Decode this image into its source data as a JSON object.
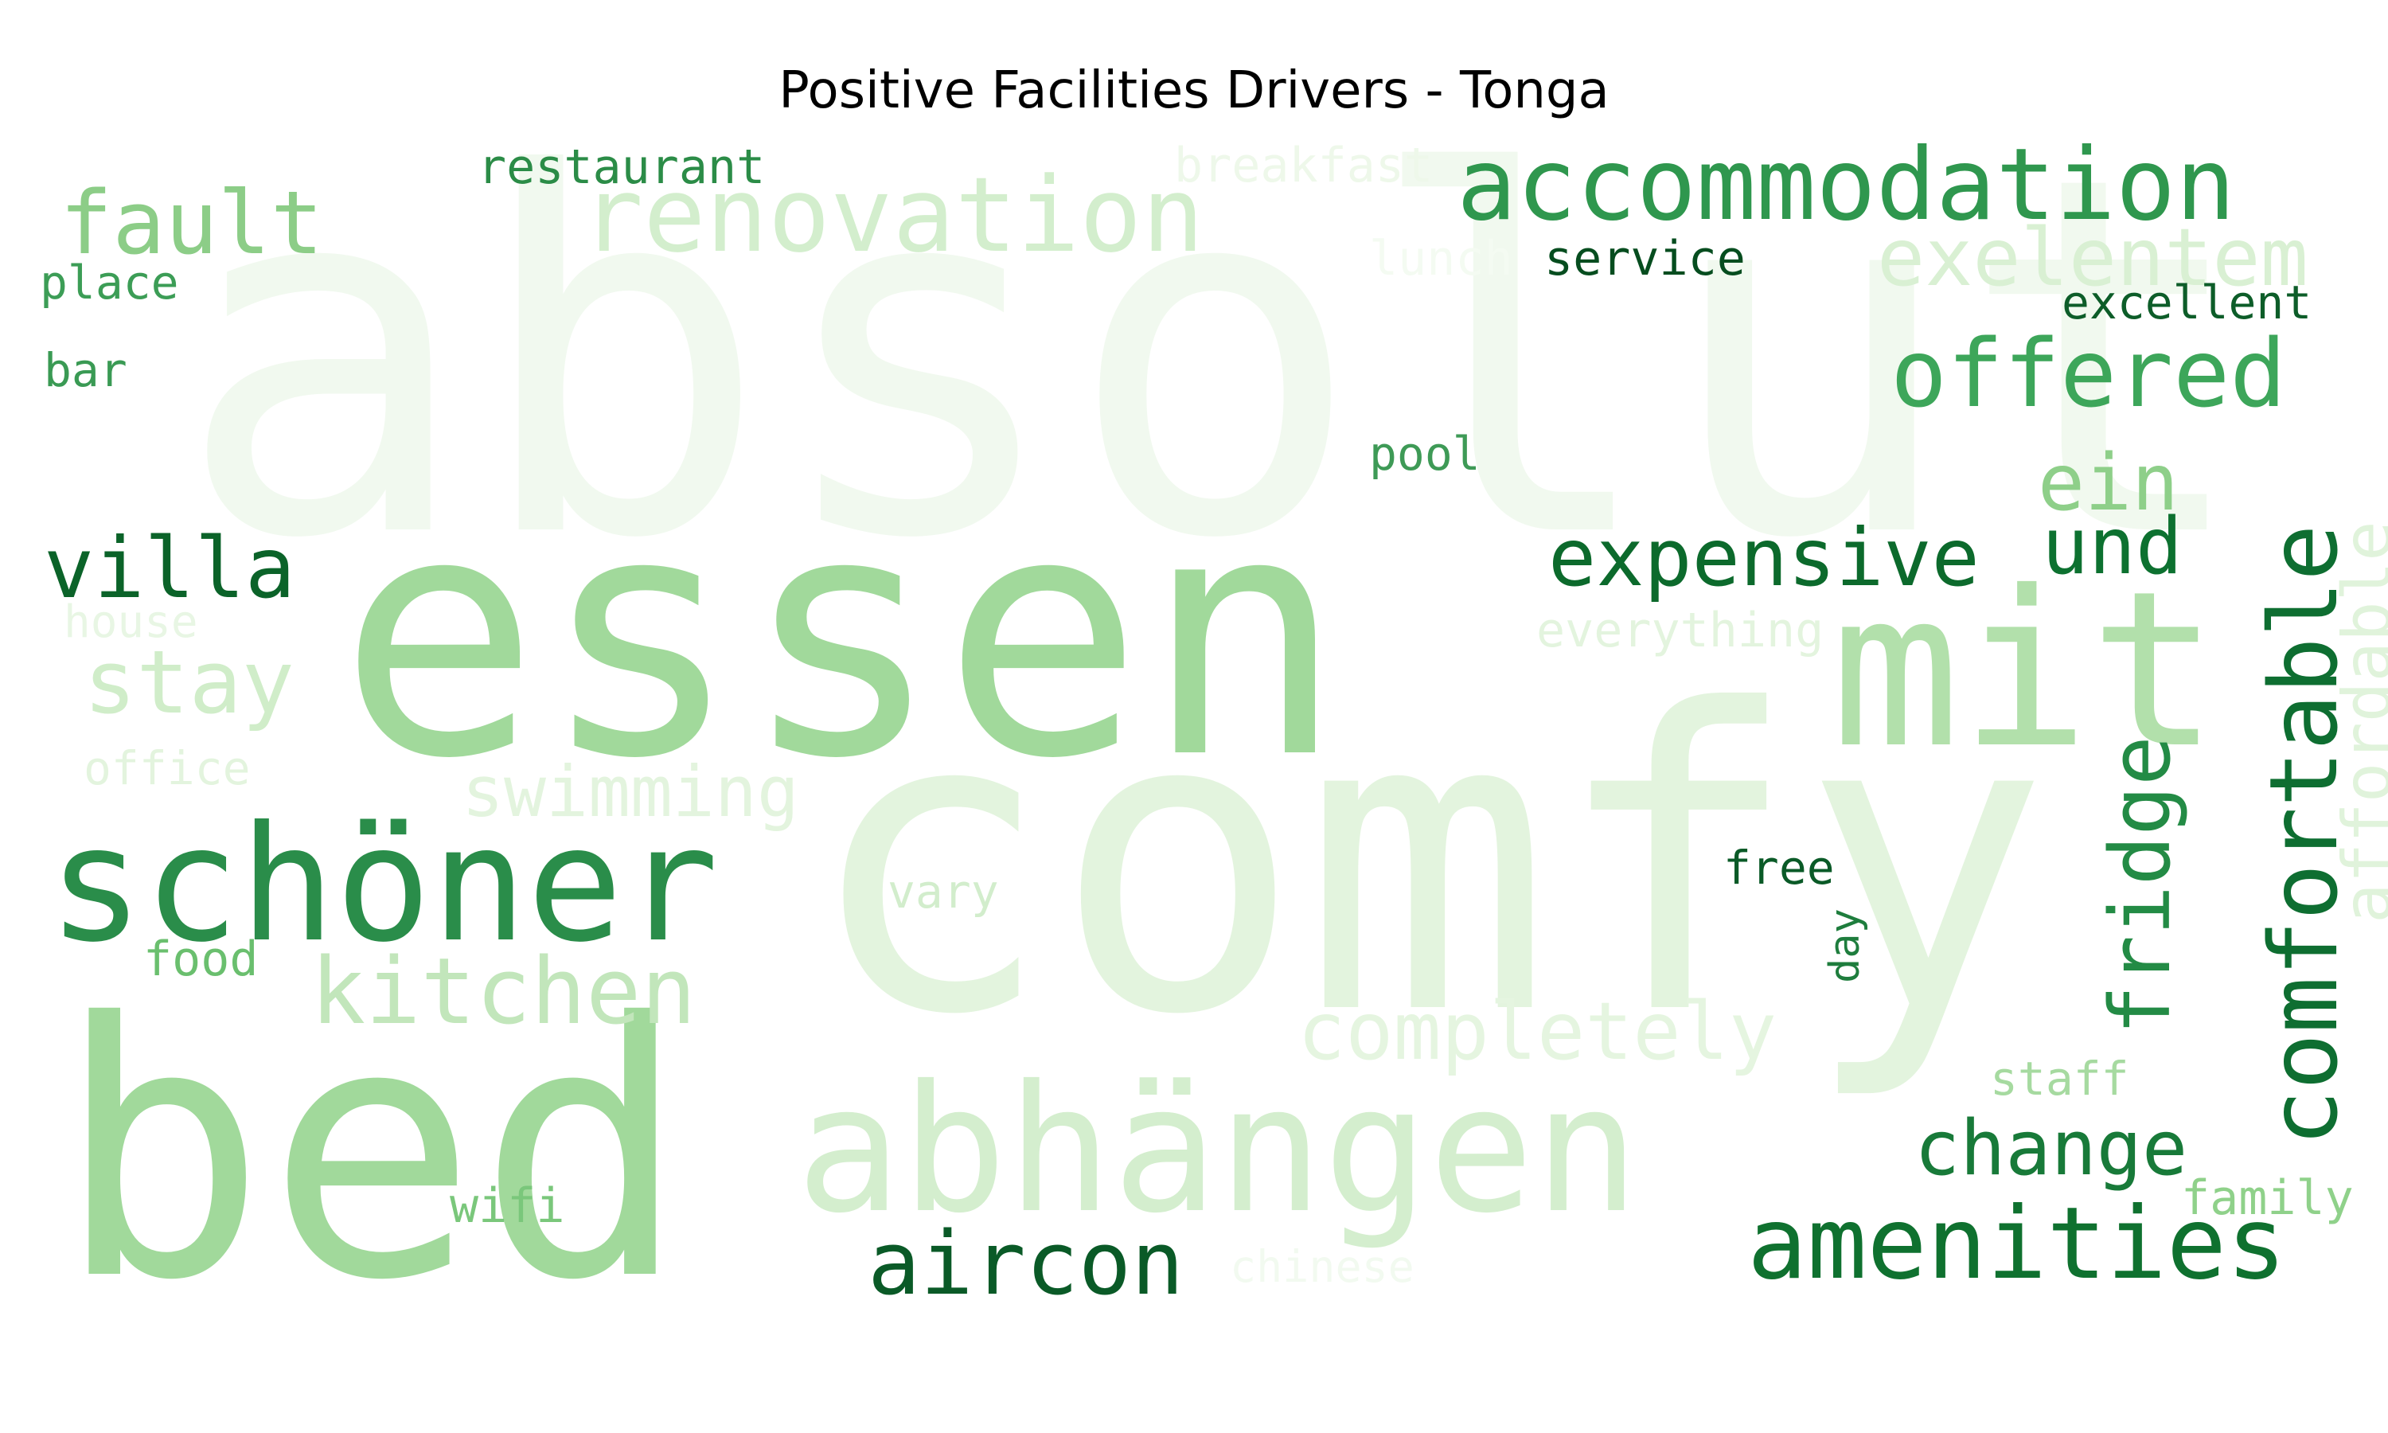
{
  "chart_data": {
    "type": "wordcloud",
    "title": "Positive Facilities Drivers - Tonga",
    "colormap": "Greens",
    "words": [
      {
        "text": "absolut",
        "color": "#f1f9ef"
      },
      {
        "text": "comfy",
        "color": "#e3f4de"
      },
      {
        "text": "essen",
        "color": "#a1d99b"
      },
      {
        "text": "bed",
        "color": "#a1d99b"
      },
      {
        "text": "abhängen",
        "color": "#d4eece"
      },
      {
        "text": "mit",
        "color": "#b2e0ab"
      },
      {
        "text": "schöner",
        "color": "#2a8d4a"
      },
      {
        "text": "renovation",
        "color": "#d3eecd"
      },
      {
        "text": "accommodation",
        "color": "#2f974e"
      },
      {
        "text": "fault",
        "color": "#8ccd87"
      },
      {
        "text": "exelentem",
        "color": "#d9f0d3"
      },
      {
        "text": "offered",
        "color": "#3da65a"
      },
      {
        "text": "comfortable",
        "color": "#0e6e31"
      },
      {
        "text": "affordable",
        "color": "#e0f3db"
      },
      {
        "text": "fridge",
        "color": "#238b45"
      },
      {
        "text": "ein",
        "color": "#8ecf89"
      },
      {
        "text": "und",
        "color": "#0d7130"
      },
      {
        "text": "expensive",
        "color": "#0c6a2c"
      },
      {
        "text": "villa",
        "color": "#0b6329"
      },
      {
        "text": "stay",
        "color": "#d0edc9"
      },
      {
        "text": "kitchen",
        "color": "#c2e6bb"
      },
      {
        "text": "completely",
        "color": "#e5f5e0"
      },
      {
        "text": "aircon",
        "color": "#0a5a27"
      },
      {
        "text": "amenities",
        "color": "#0f712f"
      },
      {
        "text": "change",
        "color": "#187a39"
      },
      {
        "text": "swimming",
        "color": "#e3f4de"
      },
      {
        "text": "everything",
        "color": "#e3f4de"
      },
      {
        "text": "restaurant",
        "color": "#2b8c47"
      },
      {
        "text": "breakfast",
        "color": "#eef8ea"
      },
      {
        "text": "service",
        "color": "#064d1f"
      },
      {
        "text": "lunch",
        "color": "#f4fbf2"
      },
      {
        "text": "excellent",
        "color": "#0d5d29"
      },
      {
        "text": "place",
        "color": "#3c9d56"
      },
      {
        "text": "bar",
        "color": "#3a9a54"
      },
      {
        "text": "pool",
        "color": "#3e9a56"
      },
      {
        "text": "house",
        "color": "#e8f6e4"
      },
      {
        "text": "office",
        "color": "#e3f4de"
      },
      {
        "text": "vary",
        "color": "#d2edcc"
      },
      {
        "text": "free",
        "color": "#0a5a27"
      },
      {
        "text": "day",
        "color": "#1e7d3d"
      },
      {
        "text": "food",
        "color": "#6abf6e"
      },
      {
        "text": "wifi",
        "color": "#7ac77b"
      },
      {
        "text": "chinese",
        "color": "#f2faf0"
      },
      {
        "text": "staff",
        "color": "#a6daa0"
      },
      {
        "text": "family",
        "color": "#8fd18a"
      }
    ]
  }
}
